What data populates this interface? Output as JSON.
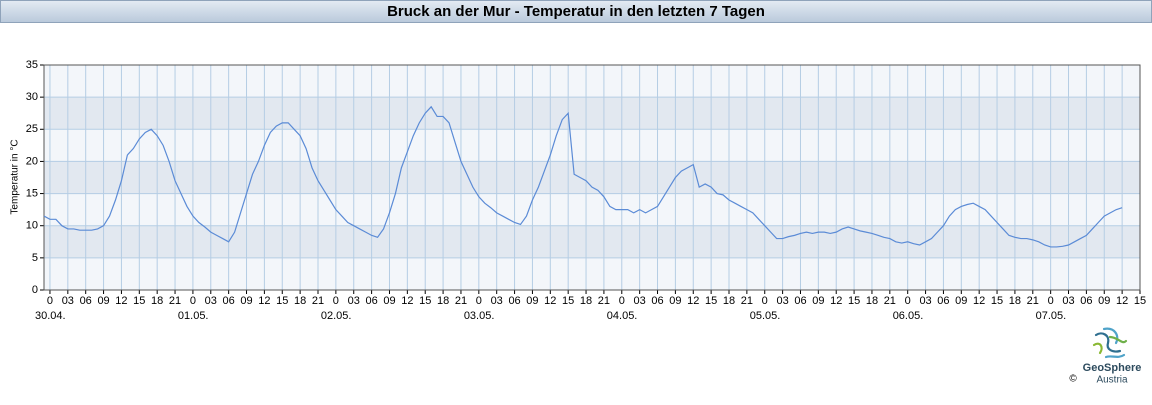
{
  "chart_data": {
    "type": "line",
    "title": "Bruck an der Mur - Temperatur in den letzten 7 Tagen",
    "y_label": "Temperatur in °C",
    "color": "#5b8bd6",
    "grid": true,
    "xlim": [
      -1,
      183
    ],
    "ylim": [
      0,
      35
    ],
    "yticks": [
      0,
      5,
      10,
      15,
      20,
      25,
      30,
      35
    ],
    "xticks": [
      0,
      {
        "value": 3,
        "label": "03"
      },
      {
        "value": 6,
        "label": "06"
      },
      {
        "value": 9,
        "label": "09"
      },
      12,
      15,
      18,
      21,
      {
        "value": 24,
        "label": "0"
      },
      {
        "value": 27,
        "label": "03"
      },
      {
        "value": 30,
        "label": "06"
      },
      {
        "value": 33,
        "label": "09"
      },
      {
        "value": 36,
        "label": "12"
      },
      {
        "value": 39,
        "label": "15"
      },
      {
        "value": 42,
        "label": "18"
      },
      {
        "value": 45,
        "label": "21"
      },
      {
        "value": 48,
        "label": "0"
      },
      {
        "value": 51,
        "label": "03"
      },
      {
        "value": 54,
        "label": "06"
      },
      {
        "value": 57,
        "label": "09"
      },
      {
        "value": 60,
        "label": "12"
      },
      {
        "value": 63,
        "label": "15"
      },
      {
        "value": 66,
        "label": "18"
      },
      {
        "value": 69,
        "label": "21"
      },
      {
        "value": 72,
        "label": "0"
      },
      {
        "value": 75,
        "label": "03"
      },
      {
        "value": 78,
        "label": "06"
      },
      {
        "value": 81,
        "label": "09"
      },
      {
        "value": 84,
        "label": "12"
      },
      {
        "value": 87,
        "label": "15"
      },
      {
        "value": 90,
        "label": "18"
      },
      {
        "value": 93,
        "label": "21"
      },
      {
        "value": 96,
        "label": "0"
      },
      {
        "value": 99,
        "label": "03"
      },
      {
        "value": 102,
        "label": "06"
      },
      {
        "value": 105,
        "label": "09"
      },
      {
        "value": 108,
        "label": "12"
      },
      {
        "value": 111,
        "label": "15"
      },
      {
        "value": 114,
        "label": "18"
      },
      {
        "value": 117,
        "label": "21"
      },
      {
        "value": 120,
        "label": "0"
      },
      {
        "value": 123,
        "label": "03"
      },
      {
        "value": 126,
        "label": "06"
      },
      {
        "value": 129,
        "label": "09"
      },
      {
        "value": 132,
        "label": "12"
      },
      {
        "value": 135,
        "label": "15"
      },
      {
        "value": 138,
        "label": "18"
      },
      {
        "value": 141,
        "label": "21"
      },
      {
        "value": 144,
        "label": "0"
      },
      {
        "value": 147,
        "label": "03"
      },
      {
        "value": 150,
        "label": "06"
      },
      {
        "value": 153,
        "label": "09"
      },
      {
        "value": 156,
        "label": "12"
      },
      {
        "value": 159,
        "label": "15"
      },
      {
        "value": 162,
        "label": "18"
      },
      {
        "value": 165,
        "label": "21"
      },
      {
        "value": 168,
        "label": "0"
      },
      {
        "value": 171,
        "label": "03"
      },
      {
        "value": 174,
        "label": "06"
      },
      {
        "value": 177,
        "label": "09"
      },
      {
        "value": 180,
        "label": "12"
      },
      {
        "value": 183,
        "label": "15"
      }
    ],
    "date_labels": [
      {
        "value": 0,
        "label": "30.04."
      },
      {
        "value": 24,
        "label": "01.05."
      },
      {
        "value": 48,
        "label": "02.05."
      },
      {
        "value": 72,
        "label": "03.05."
      },
      {
        "value": 96,
        "label": "04.05."
      },
      {
        "value": 120,
        "label": "05.05."
      },
      {
        "value": 144,
        "label": "06.05."
      },
      {
        "value": 168,
        "label": "07.05."
      }
    ],
    "x": [
      -1,
      0,
      1,
      2,
      3,
      4,
      5,
      6,
      7,
      8,
      9,
      10,
      11,
      12,
      13,
      14,
      15,
      16,
      17,
      18,
      19,
      20,
      21,
      22,
      23,
      24,
      25,
      26,
      27,
      28,
      29,
      30,
      31,
      32,
      33,
      34,
      35,
      36,
      37,
      38,
      39,
      40,
      41,
      42,
      43,
      44,
      45,
      46,
      47,
      48,
      49,
      50,
      51,
      52,
      53,
      54,
      55,
      56,
      57,
      58,
      59,
      60,
      61,
      62,
      63,
      64,
      65,
      66,
      67,
      68,
      69,
      70,
      71,
      72,
      73,
      74,
      75,
      76,
      77,
      78,
      79,
      80,
      81,
      82,
      83,
      84,
      85,
      86,
      87,
      88,
      89,
      90,
      91,
      92,
      93,
      94,
      95,
      96,
      97,
      98,
      99,
      100,
      101,
      102,
      103,
      104,
      105,
      106,
      107,
      108,
      109,
      110,
      111,
      112,
      113,
      114,
      115,
      116,
      117,
      118,
      119,
      120,
      121,
      122,
      123,
      124,
      125,
      126,
      127,
      128,
      129,
      130,
      131,
      132,
      133,
      134,
      135,
      136,
      137,
      138,
      139,
      140,
      141,
      142,
      143,
      144,
      145,
      146,
      147,
      148,
      149,
      150,
      151,
      152,
      153,
      154,
      155,
      156,
      157,
      158,
      159,
      160,
      161,
      162,
      163,
      164,
      165,
      166,
      167,
      168,
      169,
      170,
      171,
      172,
      173,
      174,
      175,
      176,
      177,
      178,
      179,
      180
    ],
    "values": [
      11.5,
      11,
      11,
      10,
      9.5,
      9.5,
      9.3,
      9.3,
      9.3,
      9.5,
      10,
      11.5,
      14,
      17,
      21,
      22,
      23.5,
      24.5,
      25,
      24,
      22.5,
      20,
      17,
      15,
      13,
      11.5,
      10.5,
      9.8,
      9,
      8.5,
      8,
      7.5,
      9,
      12,
      15,
      18,
      20,
      22.5,
      24.5,
      25.5,
      26,
      26,
      25,
      24,
      22,
      19,
      17,
      15.5,
      14,
      12.5,
      11.5,
      10.5,
      10,
      9.5,
      9,
      8.5,
      8.2,
      9.5,
      12,
      15,
      19,
      21.5,
      24,
      26,
      27.5,
      28.5,
      27,
      27,
      26,
      23,
      20,
      18,
      16,
      14.5,
      13.5,
      12.8,
      12,
      11.5,
      11,
      10.5,
      10.2,
      11.5,
      14,
      16,
      18.5,
      21,
      24,
      26.5,
      27.5,
      18,
      17.5,
      17,
      16,
      15.5,
      14.5,
      13,
      12.5,
      12.5,
      12.5,
      12,
      12.5,
      12,
      12.5,
      13,
      14.5,
      16,
      17.5,
      18.5,
      19,
      19.5,
      16,
      16.5,
      16,
      15,
      14.8,
      14,
      13.5,
      13,
      12.5,
      12,
      11,
      10,
      9,
      8,
      8,
      8.3,
      8.5,
      8.8,
      9,
      8.8,
      9,
      9,
      8.8,
      9,
      9.5,
      9.8,
      9.5,
      9.2,
      9,
      8.8,
      8.5,
      8.2,
      8,
      7.5,
      7.3,
      7.5,
      7.2,
      7,
      7.5,
      8,
      9,
      10,
      11.5,
      12.5,
      13,
      13.3,
      13.5,
      13,
      12.5,
      11.5,
      10.5,
      9.5,
      8.5,
      8.2,
      8,
      8,
      7.8,
      7.5,
      7,
      6.7,
      6.7,
      6.8,
      7,
      7.5,
      8,
      8.5,
      9.5,
      10.5,
      11.5,
      12,
      12.5,
      12.8
    ],
    "logo": {
      "name": "GeoSphere",
      "sub": "Austria",
      "copyright": "©"
    }
  }
}
